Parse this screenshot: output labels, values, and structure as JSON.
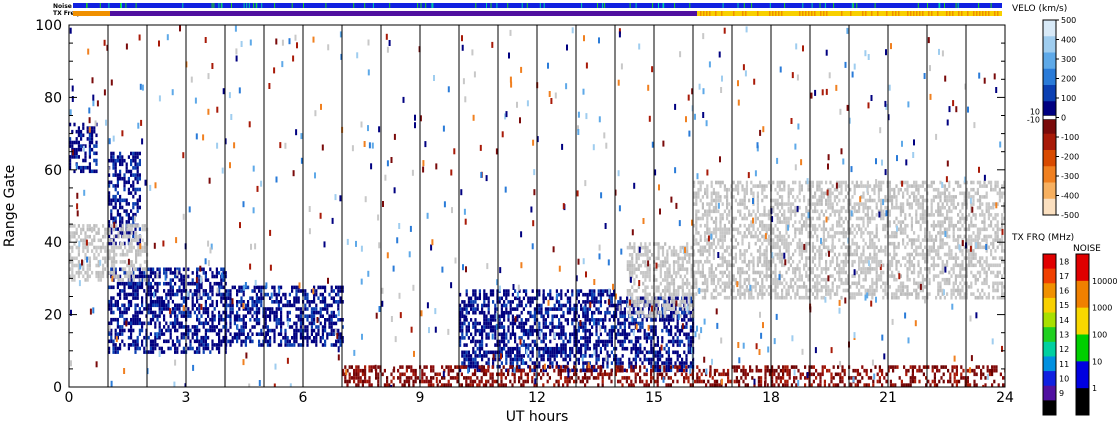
{
  "chart_data": {
    "type": "heatmap",
    "xlabel": "UT hours",
    "ylabel": "Range Gate",
    "xlim": [
      0,
      24
    ],
    "ylim": [
      0,
      100
    ],
    "xticks": [
      "0",
      "3",
      "6",
      "9",
      "12",
      "15",
      "18",
      "21",
      "24"
    ],
    "yticks": [
      "0",
      "20",
      "40",
      "60",
      "80",
      "100"
    ],
    "top_strips": {
      "noise_label": "Noise",
      "txfreq_label": "TX Freq",
      "freq_change_hour": 16
    },
    "velocity_scale": {
      "title": "VELO (km/s)",
      "ticks": [
        "500",
        "400",
        "300",
        "200",
        "100",
        "0",
        "-100",
        "-200",
        "-300",
        "-400",
        "-500"
      ],
      "zero_band_labels": [
        "10",
        "-10"
      ],
      "colors": [
        "#d8eaf8",
        "#9fcdef",
        "#5ea9e8",
        "#2a7bd8",
        "#0b3fb2",
        "#000080",
        "#7a0a0a",
        "#a81a08",
        "#d84a00",
        "#f08020",
        "#f7b060",
        "#fbe0c0"
      ]
    },
    "freq_scale": {
      "title": "TX FRQ (MHz)",
      "ticks": [
        "18",
        "17",
        "16",
        "15",
        "14",
        "13",
        "12",
        "11",
        "10",
        "9"
      ],
      "colors": [
        "#e00000",
        "#f04000",
        "#f09000",
        "#f8d000",
        "#a8e000",
        "#20d020",
        "#00d0a0",
        "#0090e0",
        "#1020e0",
        "#5010a0",
        "#000000"
      ]
    },
    "noise_scale": {
      "title": "NOISE",
      "ticks": [
        "10000",
        "1000",
        "100",
        "10",
        "1"
      ],
      "colors": [
        "#e00000",
        "#f08000",
        "#f8d800",
        "#00d000",
        "#0000e0",
        "#000000"
      ]
    },
    "series": [
      {
        "type": "blue",
        "x": [
          1,
          4
        ],
        "y": [
          10,
          33
        ]
      },
      {
        "type": "blue",
        "x": [
          4,
          7
        ],
        "y": [
          12,
          28
        ]
      },
      {
        "type": "blue",
        "x": [
          10,
          14
        ],
        "y": [
          5,
          27
        ]
      },
      {
        "type": "blue",
        "x": [
          14,
          16
        ],
        "y": [
          5,
          25
        ]
      },
      {
        "type": "blue",
        "x": [
          1,
          1.8
        ],
        "y": [
          40,
          65
        ]
      },
      {
        "type": "blue",
        "x": [
          0,
          0.7
        ],
        "y": [
          60,
          73
        ]
      },
      {
        "type": "gray",
        "x": [
          16,
          24
        ],
        "y": [
          25,
          57
        ]
      },
      {
        "type": "gray",
        "x": [
          14.3,
          16
        ],
        "y": [
          20,
          40
        ]
      },
      {
        "type": "gray",
        "x": [
          0,
          2
        ],
        "y": [
          30,
          45
        ]
      },
      {
        "type": "red",
        "x": [
          7,
          24
        ],
        "y": [
          0,
          6
        ]
      }
    ]
  }
}
